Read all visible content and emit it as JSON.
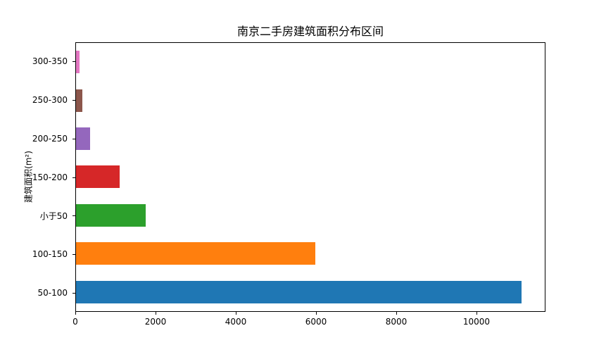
{
  "chart_data": {
    "type": "bar",
    "orientation": "horizontal",
    "title": "南京二手房建筑面积分布区间",
    "xlabel": "",
    "ylabel": "建筑面积(m²)",
    "categories": [
      "300-350",
      "250-300",
      "200-250",
      "150-200",
      "小于50",
      "100-150",
      "50-100"
    ],
    "values": [
      80,
      150,
      360,
      1090,
      1740,
      5980,
      11140
    ],
    "colors": [
      "#e377c2",
      "#8c564b",
      "#9467bd",
      "#d62728",
      "#2ca02c",
      "#ff7f0e",
      "#1f77b4"
    ],
    "xticks": [
      0,
      2000,
      4000,
      6000,
      8000,
      10000
    ],
    "xlim": [
      0,
      11720
    ],
    "grid": false,
    "legend": false,
    "background": "#ffffff",
    "spine_color": "#000000"
  }
}
